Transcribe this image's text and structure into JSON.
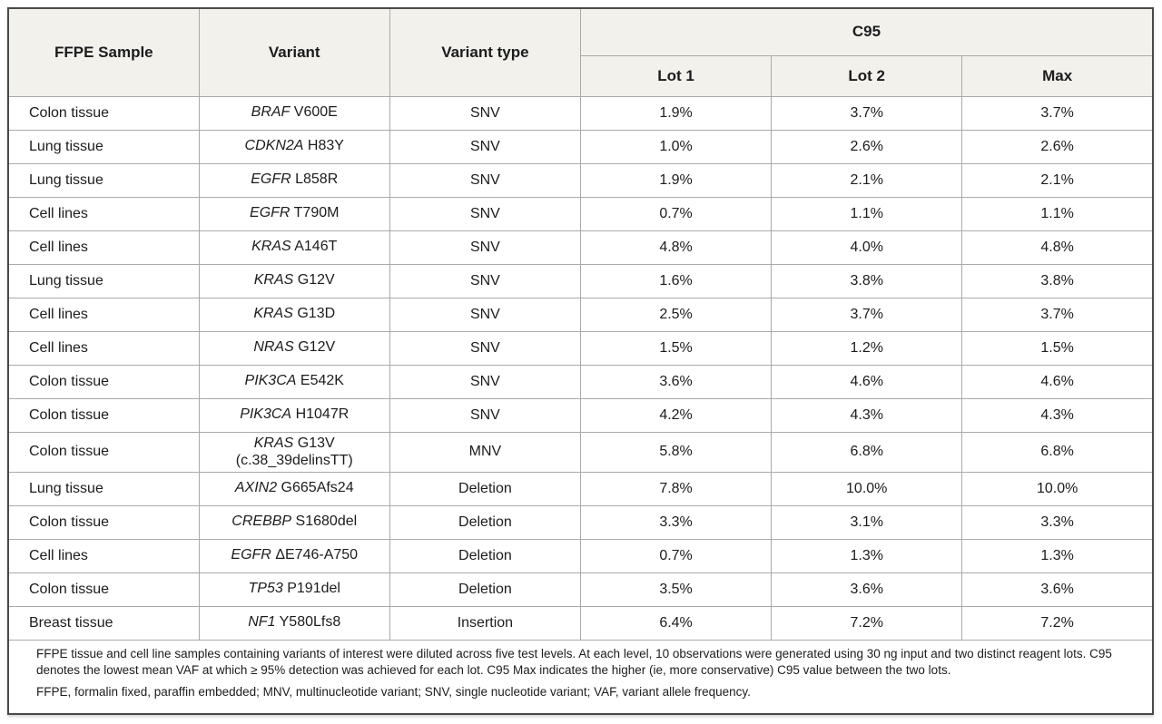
{
  "table": {
    "headers": {
      "sample": "FFPE Sample",
      "variant": "Variant",
      "variant_type": "Variant type",
      "c95_group": "C95",
      "lot1": "Lot 1",
      "lot2": "Lot 2",
      "max": "Max"
    },
    "rows": [
      {
        "sample": "Colon tissue",
        "gene": "BRAF",
        "mutation": "V600E",
        "note": "",
        "type": "SNV",
        "lot1": "1.9%",
        "lot2": "3.7%",
        "max": "3.7%"
      },
      {
        "sample": "Lung tissue",
        "gene": "CDKN2A",
        "mutation": "H83Y",
        "note": "",
        "type": "SNV",
        "lot1": "1.0%",
        "lot2": "2.6%",
        "max": "2.6%"
      },
      {
        "sample": "Lung tissue",
        "gene": "EGFR",
        "mutation": "L858R",
        "note": "",
        "type": "SNV",
        "lot1": "1.9%",
        "lot2": "2.1%",
        "max": "2.1%"
      },
      {
        "sample": "Cell lines",
        "gene": "EGFR",
        "mutation": "T790M",
        "note": "",
        "type": "SNV",
        "lot1": "0.7%",
        "lot2": "1.1%",
        "max": "1.1%"
      },
      {
        "sample": "Cell lines",
        "gene": "KRAS",
        "mutation": "A146T",
        "note": "",
        "type": "SNV",
        "lot1": "4.8%",
        "lot2": "4.0%",
        "max": "4.8%"
      },
      {
        "sample": "Lung tissue",
        "gene": "KRAS",
        "mutation": "G12V",
        "note": "",
        "type": "SNV",
        "lot1": "1.6%",
        "lot2": "3.8%",
        "max": "3.8%"
      },
      {
        "sample": "Cell lines",
        "gene": "KRAS",
        "mutation": "G13D",
        "note": "",
        "type": "SNV",
        "lot1": "2.5%",
        "lot2": "3.7%",
        "max": "3.7%"
      },
      {
        "sample": "Cell lines",
        "gene": "NRAS",
        "mutation": "G12V",
        "note": "",
        "type": "SNV",
        "lot1": "1.5%",
        "lot2": "1.2%",
        "max": "1.5%"
      },
      {
        "sample": "Colon tissue",
        "gene": "PIK3CA",
        "mutation": "E542K",
        "note": "",
        "type": "SNV",
        "lot1": "3.6%",
        "lot2": "4.6%",
        "max": "4.6%"
      },
      {
        "sample": "Colon tissue",
        "gene": "PIK3CA",
        "mutation": "H1047R",
        "note": "",
        "type": "SNV",
        "lot1": "4.2%",
        "lot2": "4.3%",
        "max": "4.3%"
      },
      {
        "sample": "Colon tissue",
        "gene": "KRAS",
        "mutation": "G13V",
        "note": "(c.38_39delinsTT)",
        "type": "MNV",
        "lot1": "5.8%",
        "lot2": "6.8%",
        "max": "6.8%"
      },
      {
        "sample": "Lung tissue",
        "gene": "AXIN2",
        "mutation": "G665Afs24",
        "note": "",
        "type": "Deletion",
        "lot1": "7.8%",
        "lot2": "10.0%",
        "max": "10.0%"
      },
      {
        "sample": "Colon tissue",
        "gene": "CREBBP",
        "mutation": "S1680del",
        "note": "",
        "type": "Deletion",
        "lot1": "3.3%",
        "lot2": "3.1%",
        "max": "3.3%"
      },
      {
        "sample": "Cell lines",
        "gene": "EGFR",
        "mutation": "ΔE746-A750",
        "note": "",
        "type": "Deletion",
        "lot1": "0.7%",
        "lot2": "1.3%",
        "max": "1.3%"
      },
      {
        "sample": "Colon tissue",
        "gene": "TP53",
        "mutation": "P191del",
        "note": "",
        "type": "Deletion",
        "lot1": "3.5%",
        "lot2": "3.6%",
        "max": "3.6%"
      },
      {
        "sample": "Breast tissue",
        "gene": "NF1",
        "mutation": "Y580Lfs8",
        "note": "",
        "type": "Insertion",
        "lot1": "6.4%",
        "lot2": "7.2%",
        "max": "7.2%"
      }
    ],
    "footnotes": [
      "FFPE tissue and cell line samples containing variants of interest were diluted across five test levels. At each level, 10 observations were generated using 30 ng input and two distinct reagent lots. C95 denotes the lowest mean VAF at which ≥ 95% detection was achieved for each lot. C95 Max indicates the higher (ie, more conservative) C95 value between the two lots.",
      "FFPE, formalin fixed, paraffin embedded; MNV, multinucleotide variant; SNV, single nucleotide variant; VAF, variant allele frequency."
    ]
  },
  "colors": {
    "header_bg": "#f2f1ec",
    "cell_border": "#aaaaaa",
    "outer_border": "#4a4a4a",
    "text": "#1c1c1e"
  }
}
